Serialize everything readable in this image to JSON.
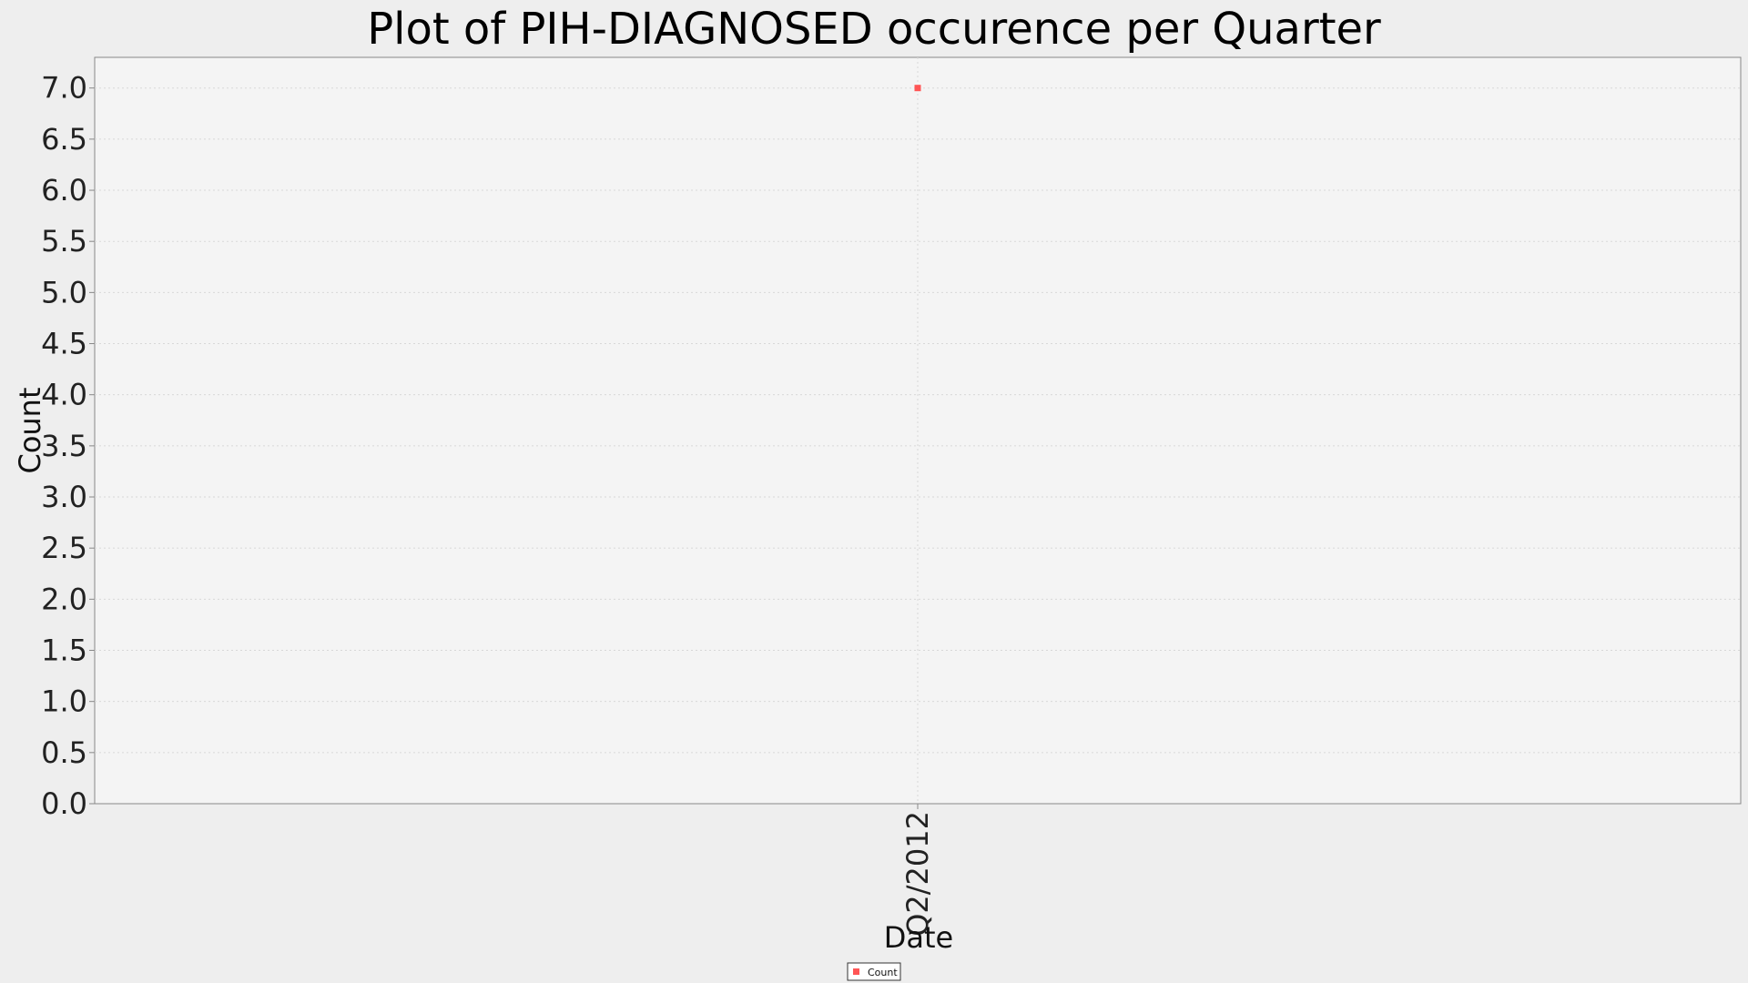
{
  "chart_data": {
    "type": "scatter",
    "title": "Plot of PIH-DIAGNOSED occurence per Quarter",
    "xlabel": "Date",
    "ylabel": "Count",
    "categories": [
      "Q2/2012"
    ],
    "series": [
      {
        "name": "Count",
        "color": "#ff5555",
        "values": [
          7.0
        ]
      }
    ],
    "ylim": [
      0.0,
      7.3
    ],
    "y_ticks": [
      "0.0",
      "0.5",
      "1.0",
      "1.5",
      "2.0",
      "2.5",
      "3.0",
      "3.5",
      "4.0",
      "4.5",
      "5.0",
      "5.5",
      "6.0",
      "6.5",
      "7.0"
    ],
    "grid": true,
    "legend_position": "bottom-center"
  },
  "colors": {
    "page_background": "#eeeeee",
    "plot_background": "#f4f4f4",
    "grid": "#d8d8d8",
    "axis": "#888888"
  }
}
